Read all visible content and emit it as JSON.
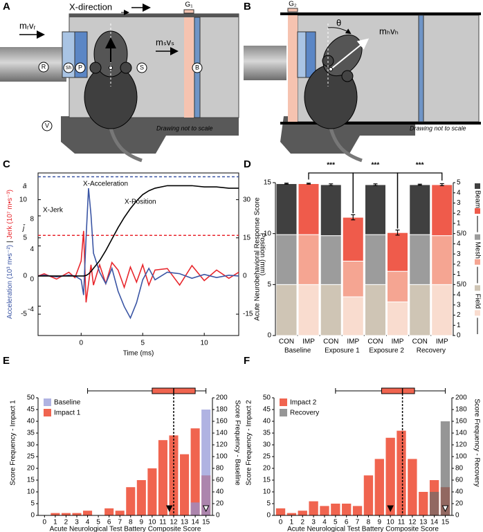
{
  "panel_labels": [
    "A",
    "B",
    "C",
    "D",
    "E",
    "F"
  ],
  "diagrams": [
    {
      "direction": "X-direction",
      "gap": "G₁",
      "ram_momentum": "mᵣvᵣ",
      "sled_momentum": "mₛvₛ",
      "parts": [
        "R",
        "Sh",
        "P",
        "S",
        "B",
        "V"
      ],
      "note": "Drawing not to scale"
    },
    {
      "gap": "G₂",
      "angle": "θ",
      "head_momentum": "mₕvₕ",
      "note": "Drawing not to scale"
    }
  ],
  "chart_data": [
    {
      "type": "line",
      "x": [
        -3.5,
        -3,
        -2,
        -1,
        -0.5,
        0,
        0.2,
        0.4,
        0.6,
        0.8,
        1,
        1.5,
        2,
        2.5,
        3,
        3.5,
        4,
        4.5,
        5,
        5.5,
        6,
        7,
        8,
        9,
        10,
        11,
        12,
        12.8
      ],
      "xlim": [
        -3.5,
        12.8
      ],
      "xticks": [
        0,
        5,
        10
      ],
      "xlabel": "Time (ms)",
      "ylim": [
        -7.8,
        13.5
      ],
      "yticks": [
        -5,
        0,
        5,
        10
      ],
      "ylabel": "Acceleration (10³ m•s⁻²)",
      "ylabel_separator": "|",
      "y3lim": [
        -7.9,
        13.7
      ],
      "y3ticks": [
        -4,
        0,
        4,
        8
      ],
      "y3label": "Jerk (10⁷ m•s⁻³)",
      "y2lim": [
        -23.4,
        40.5
      ],
      "y2ticks": [
        -15,
        0,
        15,
        30
      ],
      "y2label": "Position  (mm)",
      "reference_lines": [
        {
          "label": "ā",
          "value": 13,
          "axis": "y",
          "color": "#3a55a4"
        },
        {
          "label": "j̄",
          "value": 5.4,
          "axis": "y3",
          "color": "#e8262c"
        }
      ],
      "series": [
        {
          "name": "X-Jerk",
          "color": "#e8262c",
          "axis": "y3",
          "values": [
            0,
            0.3,
            -0.4,
            0.5,
            -0.2,
            2,
            6,
            -3.5,
            -1,
            1.5,
            -1.2,
            1.5,
            -1,
            1.8,
            0.8,
            -1.5,
            1.2,
            -0.8,
            1.5,
            -1.2,
            0.8,
            1,
            -1.2,
            1.4,
            -0.6,
            0.8,
            -0.3,
            0.5
          ]
        },
        {
          "name": "X-Acceleration",
          "color": "#3a55a4",
          "axis": "y",
          "values": [
            0,
            0.1,
            -0.1,
            0.1,
            0,
            -0.5,
            -2.5,
            5,
            11.5,
            8,
            3,
            0.5,
            -1,
            1,
            -2,
            -4,
            -5.5,
            -3.5,
            -0.5,
            1,
            -0.5,
            0.5,
            0.3,
            -0.3,
            0.2,
            -0.2,
            0.1,
            0
          ]
        },
        {
          "name": "X-Position",
          "color": "#000000",
          "axis": "y2",
          "values": [
            0,
            0,
            0,
            0,
            0,
            0,
            0,
            0.2,
            0.8,
            1.8,
            3,
            6,
            10,
            14.5,
            19,
            23,
            26.5,
            29.5,
            32,
            33.5,
            34.5,
            35.5,
            35.5,
            35.5,
            35,
            35,
            34.5,
            34.5
          ]
        }
      ]
    },
    {
      "type": "stacked_bar",
      "categories": [
        "CON",
        "IMP",
        "CON",
        "IMP",
        "CON",
        "IMP",
        "CON",
        "IMP"
      ],
      "groups": [
        "Baseline",
        "Exposure 1",
        "Exposure 2",
        "Recovery"
      ],
      "ylim": [
        0,
        15
      ],
      "yticks": [
        0,
        5,
        10,
        15
      ],
      "ylabel": "Acute Neurobehavioral Response Score",
      "series": [
        {
          "name": "Field",
          "colors": [
            "#cfc5b5",
            "#f9dccf"
          ],
          "values": [
            5,
            5,
            5,
            3.8,
            5,
            3.3,
            5,
            5
          ]
        },
        {
          "name": "Mesh",
          "colors": [
            "#9c9c9c",
            "#f5a592"
          ],
          "values": [
            4.9,
            4.9,
            4.8,
            3.5,
            4.9,
            3.0,
            4.9,
            4.8
          ]
        },
        {
          "name": "Beam",
          "colors": [
            "#404040",
            "#ef5b4b"
          ],
          "values": [
            5,
            5,
            5,
            4.3,
            4.9,
            3.8,
            4.9,
            5
          ]
        }
      ],
      "errors": [
        0.05,
        0.05,
        0.08,
        0.25,
        0.08,
        0.25,
        0.05,
        0.1
      ],
      "significance": [
        "***",
        "***",
        "***"
      ],
      "y2ticks": [
        0,
        1,
        2,
        3,
        4,
        {
          "value": 5,
          "label": "5/0"
        },
        {
          "value": 6,
          "label": "1"
        },
        {
          "value": 7,
          "label": "2"
        },
        {
          "value": 8,
          "label": "3"
        },
        {
          "value": 9,
          "label": "4"
        },
        {
          "value": 10,
          "label": "5/0"
        },
        {
          "value": 11,
          "label": "1"
        },
        {
          "value": 12,
          "label": "2"
        },
        {
          "value": 13,
          "label": "3"
        },
        {
          "value": 14,
          "label": "4"
        },
        {
          "value": 15,
          "label": "5"
        }
      ]
    },
    {
      "type": "bar",
      "x": [
        0,
        1,
        2,
        3,
        4,
        5,
        6,
        7,
        8,
        9,
        10,
        11,
        12,
        13,
        14,
        15
      ],
      "xlim": [
        -0.6,
        15.6
      ],
      "xticks": [
        0,
        1,
        2,
        3,
        4,
        5,
        6,
        7,
        8,
        9,
        10,
        11,
        12,
        13,
        14,
        15
      ],
      "xlabel": "Acute Neurological Test Battery Composite Score",
      "ylim": [
        0,
        50
      ],
      "yticks": [
        0,
        5,
        10,
        15,
        20,
        25,
        30,
        35,
        40,
        45,
        50
      ],
      "ylabel": "Score Frequency - Impact 1",
      "y_color": "#e8262c",
      "y2lim": [
        0,
        200
      ],
      "y2ticks": [
        0,
        20,
        40,
        60,
        80,
        100,
        120,
        140,
        160,
        180,
        200
      ],
      "y2label": "Score Frequency - Baseline",
      "y2_color": "#3a55a4",
      "series": [
        {
          "name": "Baseline",
          "color": "#8f93d6",
          "axis": "y2",
          "values": [
            0,
            0,
            0,
            0,
            0,
            0,
            0,
            0,
            0,
            0,
            0,
            0,
            0,
            0,
            22,
            180
          ],
          "marker": 15
        },
        {
          "name": "Impact 1",
          "color": "#f0644f",
          "values": [
            0,
            1,
            1,
            1,
            2,
            0,
            3,
            2,
            12,
            15,
            20,
            32,
            34,
            26,
            37,
            17
          ],
          "marker": 11.6
        }
      ],
      "box": {
        "whisker_low": 4,
        "q1": 10,
        "median": 12,
        "q3": 14,
        "whisker_high": 15
      }
    },
    {
      "type": "bar",
      "x": [
        0,
        1,
        2,
        3,
        4,
        5,
        6,
        7,
        8,
        9,
        10,
        11,
        12,
        13,
        14,
        15
      ],
      "xlim": [
        -0.6,
        15.6
      ],
      "xticks": [
        0,
        1,
        2,
        3,
        4,
        5,
        6,
        7,
        8,
        9,
        10,
        11,
        12,
        13,
        14,
        15
      ],
      "xlabel": "Acute Neurological Test Battery Composite Score",
      "ylim": [
        0,
        50
      ],
      "yticks": [
        0,
        5,
        10,
        15,
        20,
        25,
        30,
        35,
        40,
        45,
        50
      ],
      "ylabel": "Score Frequency - Impact 2",
      "y_color": "#e8262c",
      "y2lim": [
        0,
        200
      ],
      "y2ticks": [
        0,
        20,
        40,
        60,
        80,
        100,
        120,
        140,
        160,
        180,
        200
      ],
      "y2label": "Score Frequency - Recovery",
      "y2_color": "#333333",
      "series": [
        {
          "name": "Impact 2",
          "color": "#f0644f",
          "values": [
            3,
            1,
            2,
            6,
            4,
            5,
            5,
            4,
            17,
            24,
            33,
            36,
            24,
            10,
            15,
            12
          ],
          "marker": 10
        },
        {
          "name": "Recovery",
          "color": "#6a6a6a",
          "axis": "y2",
          "values": [
            0,
            0,
            0,
            0,
            0,
            0,
            0,
            0,
            0,
            0,
            0,
            0,
            0,
            0,
            40,
            160
          ],
          "marker": 15
        }
      ],
      "box": {
        "whisker_low": 5,
        "q1": 9.2,
        "median": 11.1,
        "q3": 12.2,
        "whisker_high": 15
      }
    }
  ]
}
